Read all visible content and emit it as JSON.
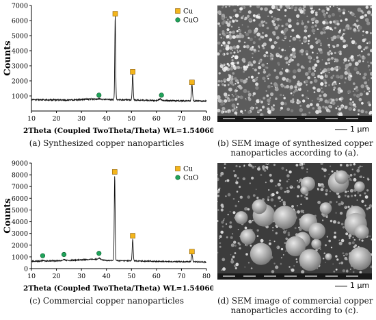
{
  "chart_data": [
    {
      "type": "line",
      "panel": "a",
      "ylabel": "Counts",
      "xlabel": "2Theta (Coupled TwoTheta/Theta) WL=1.54060",
      "xlim": [
        10,
        80
      ],
      "ylim": [
        0,
        7000
      ],
      "xticks": [
        10,
        20,
        30,
        40,
        50,
        60,
        70,
        80
      ],
      "yticks": [
        1000,
        2000,
        3000,
        4000,
        5000,
        6000,
        7000
      ],
      "legend": [
        {
          "label": "Cu",
          "marker": "square",
          "color": "#f3b51c"
        },
        {
          "label": "CuO",
          "marker": "circle",
          "color": "#20a35a"
        }
      ],
      "legend_position": "top-right",
      "baseline": [
        [
          10,
          760
        ],
        [
          25,
          720
        ],
        [
          35,
          800
        ],
        [
          40,
          760
        ],
        [
          60,
          700
        ],
        [
          80,
          650
        ]
      ],
      "peaks": [
        {
          "x": 37.0,
          "y": 800,
          "width": 1.2,
          "phase": "CuO"
        },
        {
          "x": 43.5,
          "y": 6300,
          "width": 0.35,
          "phase": "Cu"
        },
        {
          "x": 50.5,
          "y": 2450,
          "width": 0.4,
          "phase": "Cu"
        },
        {
          "x": 61.5,
          "y": 800,
          "width": 1.0,
          "phase": "CuO"
        },
        {
          "x": 74.2,
          "y": 1750,
          "width": 0.45,
          "phase": "Cu"
        }
      ],
      "markers": [
        {
          "x": 43.5,
          "y": 6450,
          "phase": "Cu"
        },
        {
          "x": 50.5,
          "y": 2600,
          "phase": "Cu"
        },
        {
          "x": 74.2,
          "y": 1900,
          "phase": "Cu"
        },
        {
          "x": 37.0,
          "y": 1050,
          "phase": "CuO"
        },
        {
          "x": 62.0,
          "y": 1050,
          "phase": "CuO"
        }
      ]
    },
    {
      "type": "line",
      "panel": "c",
      "ylabel": "Counts",
      "xlabel": "2Theta (Coupled TwoTheta/Theta) WL=1.54060",
      "xlim": [
        10,
        80
      ],
      "ylim": [
        0,
        9000
      ],
      "xticks": [
        10,
        20,
        30,
        40,
        50,
        60,
        70,
        80
      ],
      "yticks": [
        0,
        1000,
        2000,
        3000,
        4000,
        5000,
        6000,
        7000,
        8000,
        9000
      ],
      "legend": [
        {
          "label": "Cu",
          "marker": "square",
          "color": "#f3b51c"
        },
        {
          "label": "CuO",
          "marker": "circle",
          "color": "#20a35a"
        }
      ],
      "legend_position": "top-right",
      "baseline": [
        [
          10,
          620
        ],
        [
          25,
          700
        ],
        [
          35,
          800
        ],
        [
          40,
          700
        ],
        [
          60,
          620
        ],
        [
          80,
          560
        ]
      ],
      "peaks": [
        {
          "x": 14.5,
          "y": 700,
          "width": 0.8,
          "phase": "CuO"
        },
        {
          "x": 23.0,
          "y": 780,
          "width": 0.8,
          "phase": "CuO"
        },
        {
          "x": 37.0,
          "y": 900,
          "width": 1.0,
          "phase": "CuO"
        },
        {
          "x": 43.3,
          "y": 7900,
          "width": 0.35,
          "phase": "Cu"
        },
        {
          "x": 50.5,
          "y": 2500,
          "width": 0.4,
          "phase": "Cu"
        },
        {
          "x": 74.2,
          "y": 1250,
          "width": 0.45,
          "phase": "Cu"
        }
      ],
      "markers": [
        {
          "x": 43.3,
          "y": 8250,
          "phase": "Cu"
        },
        {
          "x": 50.5,
          "y": 2800,
          "phase": "Cu"
        },
        {
          "x": 74.2,
          "y": 1450,
          "phase": "Cu"
        },
        {
          "x": 14.5,
          "y": 1100,
          "phase": "CuO"
        },
        {
          "x": 23.0,
          "y": 1200,
          "phase": "CuO"
        },
        {
          "x": 37.0,
          "y": 1300,
          "phase": "CuO"
        }
      ]
    }
  ],
  "captions": {
    "a": "(a) Synthesized copper nanoparticles",
    "b_line1": "(b) SEM image of synthesized copper",
    "b_line2": "nanoparticles according to (a).",
    "c": "(c) Commercial copper nanoparticles",
    "d_line1": "(d) SEM image of commercial copper",
    "d_line2": "nanoparticles according to (c)."
  },
  "sem": {
    "scale_label_b": "1 μm",
    "scale_label_d": "1 μm"
  }
}
